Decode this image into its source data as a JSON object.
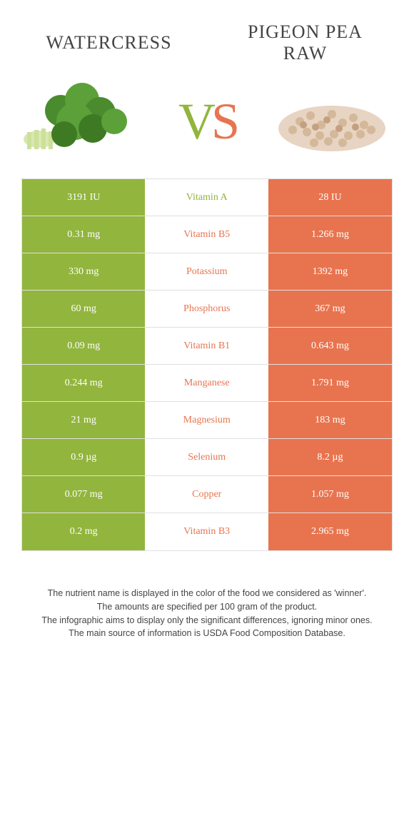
{
  "header": {
    "left_title": "WATERCRESS",
    "right_title": "PIGEON PEA RAW"
  },
  "vs": {
    "v": "V",
    "s": "S"
  },
  "colors": {
    "green": "#92b53d",
    "orange": "#e8744f",
    "background": "#ffffff",
    "border": "#e0e0e0",
    "text": "#444444"
  },
  "table": {
    "rows": [
      {
        "left": "3191 IU",
        "label": "Vitamin A",
        "right": "28 IU",
        "winner": "green"
      },
      {
        "left": "0.31 mg",
        "label": "Vitamin B5",
        "right": "1.266 mg",
        "winner": "orange"
      },
      {
        "left": "330 mg",
        "label": "Potassium",
        "right": "1392 mg",
        "winner": "orange"
      },
      {
        "left": "60 mg",
        "label": "Phosphorus",
        "right": "367 mg",
        "winner": "orange"
      },
      {
        "left": "0.09 mg",
        "label": "Vitamin B1",
        "right": "0.643 mg",
        "winner": "orange"
      },
      {
        "left": "0.244 mg",
        "label": "Manganese",
        "right": "1.791 mg",
        "winner": "orange"
      },
      {
        "left": "21 mg",
        "label": "Magnesium",
        "right": "183 mg",
        "winner": "orange"
      },
      {
        "left": "0.9 µg",
        "label": "Selenium",
        "right": "8.2 µg",
        "winner": "orange"
      },
      {
        "left": "0.077 mg",
        "label": "Copper",
        "right": "1.057 mg",
        "winner": "orange"
      },
      {
        "left": "0.2 mg",
        "label": "Vitamin B3",
        "right": "2.965 mg",
        "winner": "orange"
      }
    ]
  },
  "footnote": {
    "line1": "The nutrient name is displayed in the color of the food we considered as 'winner'.",
    "line2": "The amounts are specified per 100 gram of the product.",
    "line3": "The infographic aims to display only the significant differences, ignoring minor ones.",
    "line4": "The main source of information is USDA Food Composition Database."
  }
}
